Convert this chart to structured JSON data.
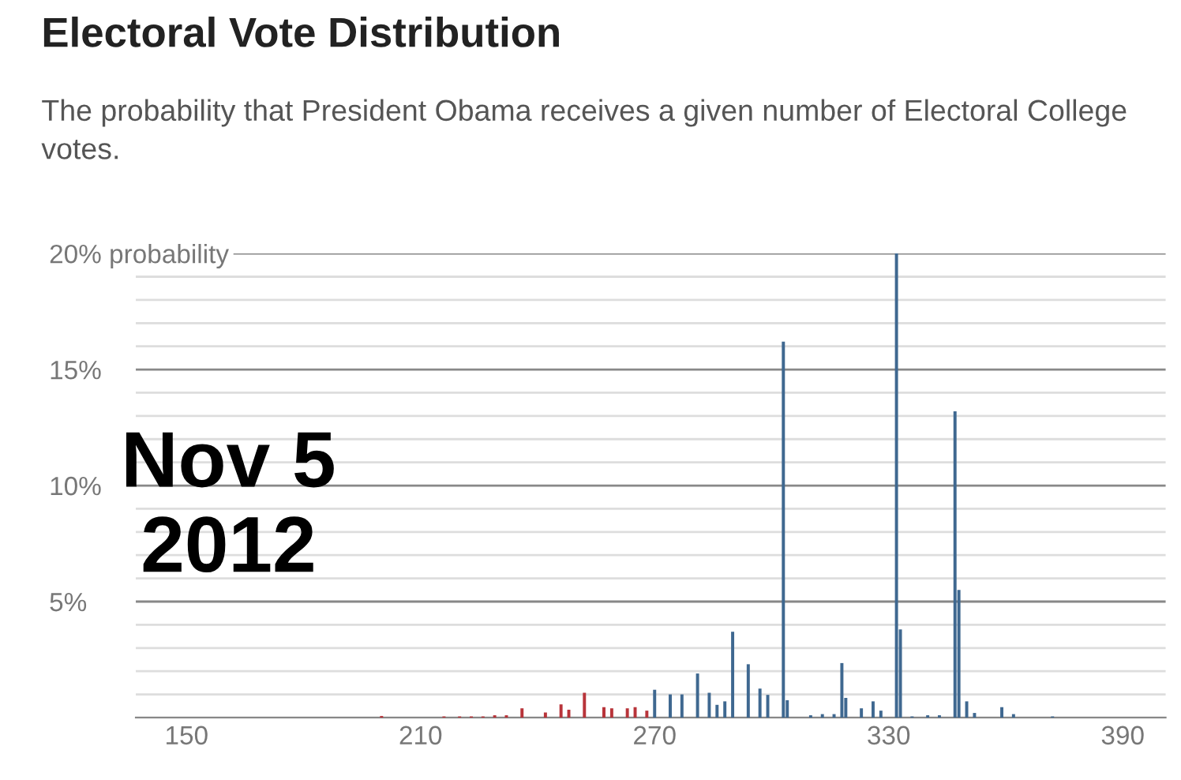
{
  "chart_data": {
    "type": "bar",
    "title": "Electoral Vote Distribution",
    "subtitle": "The probability that President Obama receives a given number of Electoral College votes.",
    "annotations": [
      "Nov 5\n2012"
    ],
    "x": [
      200,
      216,
      220,
      223,
      226,
      229,
      232,
      236,
      242,
      246,
      248,
      252,
      257,
      259,
      263,
      265,
      268,
      270,
      274,
      277,
      281,
      284,
      286,
      288,
      290,
      294,
      297,
      299,
      303,
      304,
      310,
      313,
      316,
      318,
      319,
      323,
      326,
      328,
      332,
      333,
      336,
      340,
      343,
      347,
      348,
      350,
      352,
      359,
      362,
      372
    ],
    "values": [
      0.07,
      0.05,
      0.05,
      0.05,
      0.05,
      0.1,
      0.1,
      0.4,
      0.22,
      0.57,
      0.34,
      1.07,
      0.45,
      0.4,
      0.4,
      0.45,
      0.3,
      1.2,
      1.0,
      1.0,
      1.9,
      1.07,
      0.55,
      0.7,
      3.7,
      2.3,
      1.25,
      0.98,
      16.2,
      0.75,
      0.1,
      0.15,
      0.15,
      2.35,
      0.85,
      0.4,
      0.7,
      0.3,
      20,
      3.8,
      0.05,
      0.1,
      0.1,
      13.2,
      5.5,
      0.7,
      0.2,
      0.45,
      0.15,
      0.05
    ],
    "colors": [
      "#b8343a",
      "#b8343a",
      "#b8343a",
      "#b8343a",
      "#b8343a",
      "#b8343a",
      "#b8343a",
      "#b8343a",
      "#b8343a",
      "#b8343a",
      "#b8343a",
      "#b8343a",
      "#b8343a",
      "#b8343a",
      "#b8343a",
      "#b8343a",
      "#b8343a",
      "#3f6890",
      "#3f6890",
      "#3f6890",
      "#3f6890",
      "#3f6890",
      "#3f6890",
      "#3f6890",
      "#3f6890",
      "#3f6890",
      "#3f6890",
      "#3f6890",
      "#3f6890",
      "#3f6890",
      "#3f6890",
      "#3f6890",
      "#3f6890",
      "#3f6890",
      "#3f6890",
      "#3f6890",
      "#3f6890",
      "#3f6890",
      "#3f6890",
      "#3f6890",
      "#3f6890",
      "#3f6890",
      "#3f6890",
      "#3f6890",
      "#3f6890",
      "#3f6890",
      "#3f6890",
      "#3f6890",
      "#3f6890",
      "#3f6890"
    ],
    "xlim": [
      137,
      401
    ],
    "xticks": [
      150,
      210,
      270,
      330,
      390
    ],
    "ylim": [
      0,
      20
    ],
    "yticks": [
      {
        "value": 1,
        "label": null
      },
      {
        "value": 2,
        "label": null
      },
      {
        "value": 3,
        "label": null
      },
      {
        "value": 4,
        "label": null
      },
      {
        "value": 5,
        "label": "5%"
      },
      {
        "value": 6,
        "label": null
      },
      {
        "value": 7,
        "label": null
      },
      {
        "value": 8,
        "label": null
      },
      {
        "value": 9,
        "label": null
      },
      {
        "value": 10,
        "label": "10%"
      },
      {
        "value": 11,
        "label": null
      },
      {
        "value": 12,
        "label": null
      },
      {
        "value": 13,
        "label": null
      },
      {
        "value": 14,
        "label": null
      },
      {
        "value": 15,
        "label": "15%"
      },
      {
        "value": 16,
        "label": null
      },
      {
        "value": 17,
        "label": null
      },
      {
        "value": 18,
        "label": null
      },
      {
        "value": 19,
        "label": null
      },
      {
        "value": 20,
        "label": "20% probability"
      }
    ],
    "grid": "y"
  }
}
